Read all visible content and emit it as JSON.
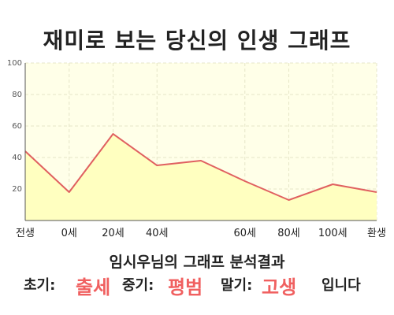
{
  "title": "재미로 보는 당신의 인생 그래프",
  "chart_data": {
    "type": "area",
    "categories": [
      "전생",
      "0세",
      "20세",
      "40세",
      "",
      "60세",
      "80세",
      "100세",
      "환생"
    ],
    "values": [
      44,
      18,
      55,
      35,
      38,
      25,
      13,
      23,
      18
    ],
    "ylim": [
      0,
      100
    ],
    "yticks": [
      20,
      40,
      60,
      80,
      100
    ],
    "xlabels": [
      "전생",
      "0세",
      "20세",
      "40세",
      "60세",
      "80세",
      "100세",
      "환생"
    ],
    "grid": true,
    "colors": {
      "line": "#e06060",
      "fill": "#ffffc0",
      "plot_bg": "#ffffe8",
      "grid": "#e6e6c8"
    }
  },
  "result": {
    "title": "임시우님의 그래프 분석결과",
    "early_label": "초기:",
    "early_value": "출세",
    "middle_label": "중기:",
    "middle_value": "평범",
    "late_label": "말기:",
    "late_value": "고생",
    "suffix": "입니다",
    "highlight_color": "#f06060"
  }
}
